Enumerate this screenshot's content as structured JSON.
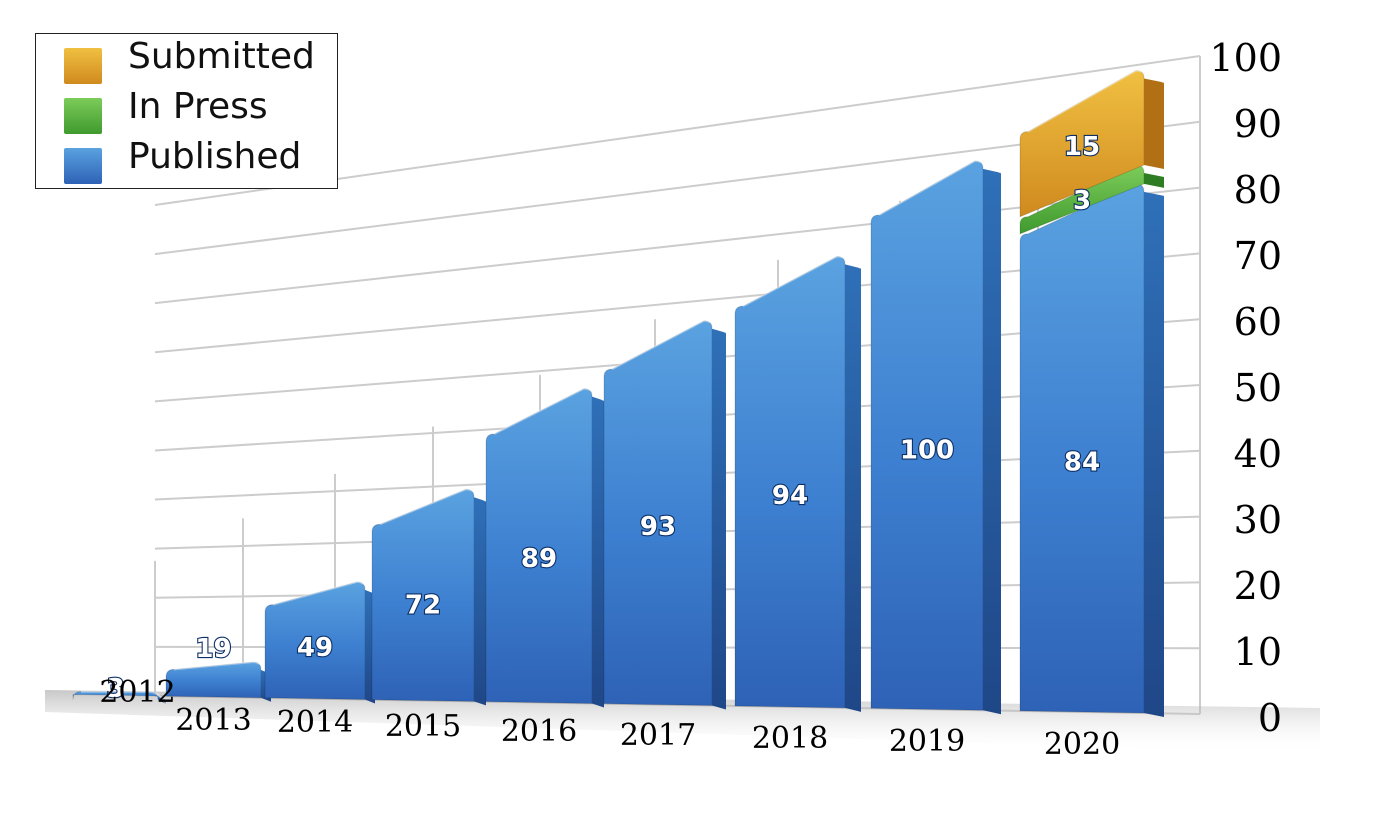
{
  "chart_data": {
    "type": "bar",
    "stacked": true,
    "title": "",
    "xlabel": "",
    "ylabel": "",
    "categories": [
      "2012",
      "2013",
      "2014",
      "2015",
      "2016",
      "2017",
      "2018",
      "2019",
      "2020"
    ],
    "series": [
      {
        "name": "Published",
        "values": [
          3,
          19,
          49,
          72,
          89,
          93,
          94,
          100,
          84
        ],
        "color": "#3a7fd1"
      },
      {
        "name": "In Press",
        "values": [
          0,
          0,
          0,
          0,
          0,
          0,
          0,
          0,
          3
        ],
        "color": "#4cae3a"
      },
      {
        "name": "Submitted",
        "values": [
          0,
          0,
          0,
          0,
          0,
          0,
          0,
          0,
          15
        ],
        "color": "#e3a52a"
      }
    ],
    "ylim": [
      0,
      100
    ],
    "yticks": [
      "0",
      "10",
      "20",
      "30",
      "40",
      "50",
      "60",
      "70",
      "80",
      "90",
      "100"
    ],
    "grid": true,
    "legend_position": "top-left",
    "legend": [
      "Submitted",
      "In Press",
      "Published"
    ]
  }
}
